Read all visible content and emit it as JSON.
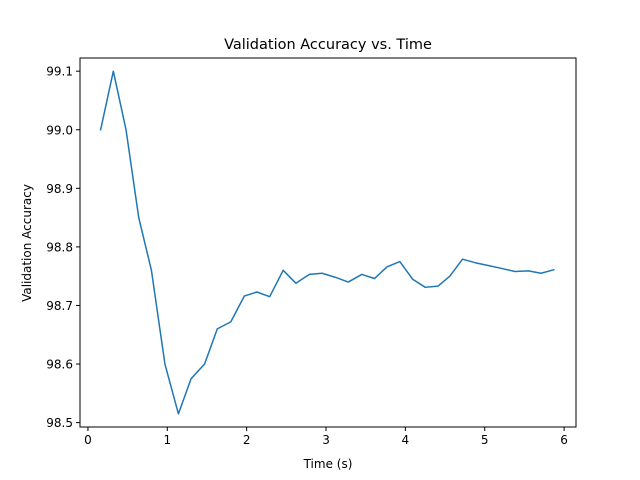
{
  "chart_data": {
    "type": "line",
    "title": "Validation Accuracy vs. Time",
    "xlabel": "Time (s)",
    "ylabel": "Validation Accuracy",
    "xlim": [
      -0.1,
      6.15
    ],
    "ylim": [
      98.4925,
      99.1225
    ],
    "xticks": [
      0,
      1,
      2,
      3,
      4,
      5,
      6
    ],
    "xtick_labels": [
      "0",
      "1",
      "2",
      "3",
      "4",
      "5",
      "6"
    ],
    "yticks": [
      98.5,
      98.6,
      98.7,
      98.8,
      98.9,
      99.0,
      99.1
    ],
    "ytick_labels": [
      "98.5",
      "98.6",
      "98.7",
      "98.8",
      "98.9",
      "99.0",
      "99.1"
    ],
    "grid": false,
    "series": [
      {
        "color": "#1f77b4",
        "x": [
          0.16,
          0.32,
          0.48,
          0.64,
          0.8,
          0.97,
          1.14,
          1.3,
          1.47,
          1.63,
          1.8,
          1.97,
          2.13,
          2.29,
          2.46,
          2.62,
          2.79,
          2.95,
          3.12,
          3.28,
          3.45,
          3.61,
          3.77,
          3.93,
          4.09,
          4.25,
          4.41,
          4.56,
          4.72,
          4.88,
          5.05,
          5.22,
          5.38,
          5.55,
          5.71,
          5.87
        ],
        "y": [
          99.0,
          99.1,
          99.0,
          98.85,
          98.76,
          98.6,
          98.515,
          98.575,
          98.6,
          98.66,
          98.672,
          98.716,
          98.723,
          98.715,
          98.76,
          98.738,
          98.753,
          98.755,
          98.748,
          98.74,
          98.753,
          98.746,
          98.766,
          98.775,
          98.745,
          98.731,
          98.733,
          98.75,
          98.779,
          98.773,
          98.768,
          98.763,
          98.758,
          98.759,
          98.755,
          98.761
        ]
      }
    ]
  }
}
